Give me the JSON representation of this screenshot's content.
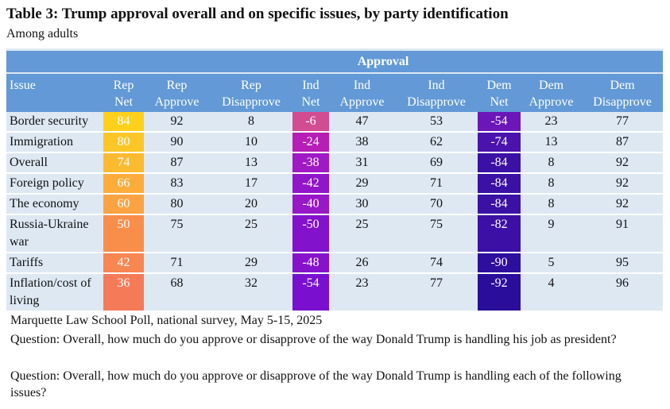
{
  "title": "Table 3: Trump approval overall and on specific issues, by party identification",
  "subtitle": "Among adults",
  "group_header": "Approval",
  "columns": [
    {
      "l1": "Issue",
      "l2": ""
    },
    {
      "l1": "Rep",
      "l2": "Net"
    },
    {
      "l1": "Rep",
      "l2": "Approve"
    },
    {
      "l1": "Rep",
      "l2": "Disapprove"
    },
    {
      "l1": "Ind",
      "l2": "Net"
    },
    {
      "l1": "Ind",
      "l2": "Approve"
    },
    {
      "l1": "Ind",
      "l2": "Disapprove"
    },
    {
      "l1": "Dem",
      "l2": "Net"
    },
    {
      "l1": "Dem",
      "l2": "Approve"
    },
    {
      "l1": "Dem",
      "l2": "Disapprove"
    }
  ],
  "rows": [
    {
      "issue": "Border security",
      "v": [
        "84",
        "92",
        "8",
        "-6",
        "47",
        "53",
        "-54",
        "23",
        "77"
      ],
      "colors": [
        "#fdd01c",
        "#d24c93",
        "#6b16b8"
      ]
    },
    {
      "issue": "Immigration",
      "v": [
        "80",
        "90",
        "10",
        "-24",
        "38",
        "62",
        "-74",
        "13",
        "87"
      ],
      "colors": [
        "#fdc627",
        "#b61eb6",
        "#4a13ad"
      ]
    },
    {
      "issue": "Overall",
      "v": [
        "74",
        "87",
        "13",
        "-38",
        "31",
        "69",
        "-84",
        "8",
        "92"
      ],
      "colors": [
        "#fcba2f",
        "#9f1ac5",
        "#3a10a5"
      ]
    },
    {
      "issue": "Foreign policy",
      "v": [
        "66",
        "83",
        "17",
        "-42",
        "29",
        "71",
        "-84",
        "8",
        "92"
      ],
      "colors": [
        "#fcac3a",
        "#9216c9",
        "#3a10a5"
      ]
    },
    {
      "issue": "The economy",
      "v": [
        "60",
        "80",
        "20",
        "-40",
        "30",
        "70",
        "-84",
        "8",
        "92"
      ],
      "colors": [
        "#fba343",
        "#9817c7",
        "#3a10a5"
      ]
    },
    {
      "issue": "Russia-Ukraine war",
      "v": [
        "50",
        "75",
        "25",
        "-50",
        "25",
        "75",
        "-82",
        "9",
        "91"
      ],
      "colors": [
        "#f98e4b",
        "#8312cc",
        "#3c10a6"
      ]
    },
    {
      "issue": "Tariffs",
      "v": [
        "42",
        "71",
        "29",
        "-48",
        "26",
        "74",
        "-90",
        "5",
        "95"
      ],
      "colors": [
        "#f78651",
        "#8613cb",
        "#2d0e9e"
      ]
    },
    {
      "issue": "Inflation/cost of living",
      "v": [
        "36",
        "68",
        "32",
        "-54",
        "23",
        "77",
        "-92",
        "4",
        "96"
      ],
      "colors": [
        "#f57a57",
        "#7910d0",
        "#2a0d9b"
      ]
    }
  ],
  "footer": {
    "source": "Marquette Law School Poll, national survey, May 5-15, 2025",
    "q1": "Question: Overall, how much do you approve or disapprove of the way Donald Trump is handling his job as president?",
    "q2": "Question: Overall, how much do you approve or disapprove of the way Donald Trump is handling each of the following issues?"
  }
}
